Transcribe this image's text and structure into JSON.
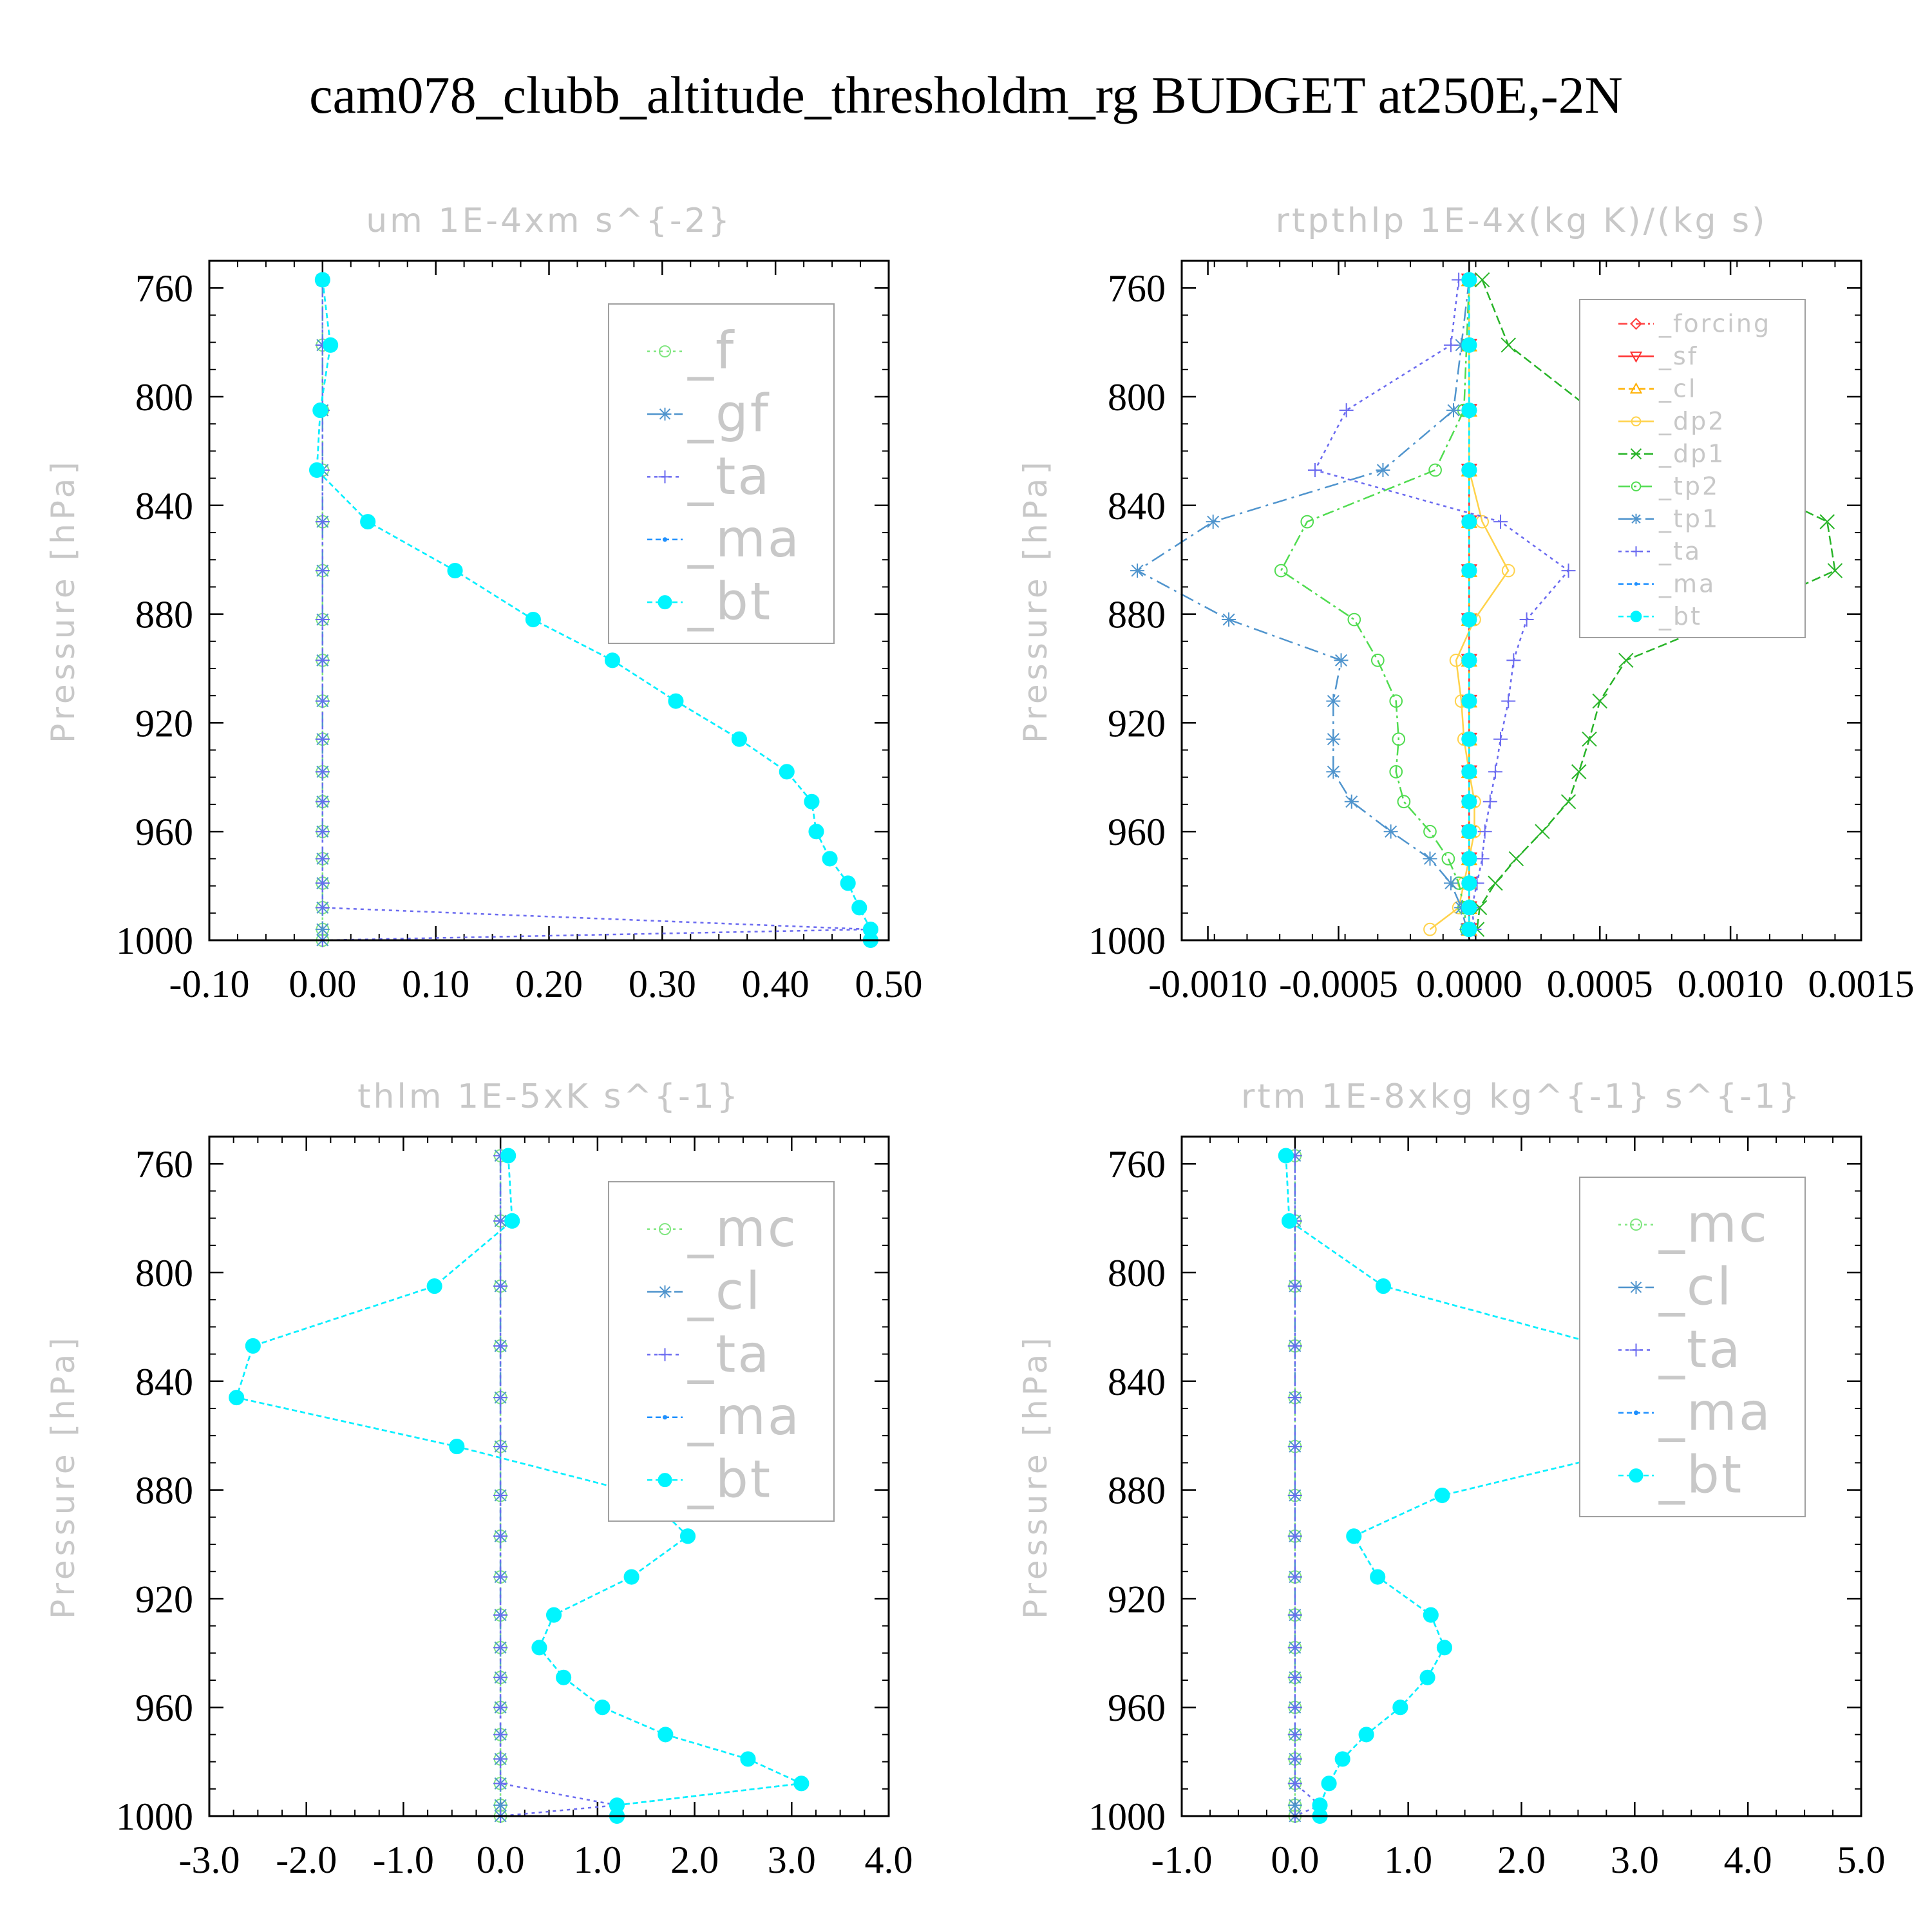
{
  "figure": {
    "title": "cam078_clubb_altitude_thresholdm_rg  BUDGET at250E,-2N"
  },
  "chart_data": [
    {
      "type": "line",
      "title": "um  1E-4xm s^{-2}",
      "ylabel": "Pressure [hPa]",
      "xlabel": "",
      "xlim": [
        -0.1,
        0.5
      ],
      "ylim": [
        1000,
        750
      ],
      "xticks": [
        "-0.10",
        "0.00",
        "0.10",
        "0.20",
        "0.30",
        "0.40",
        "0.50"
      ],
      "xtick_values": [
        -0.1,
        0.0,
        0.1,
        0.2,
        0.3,
        0.4,
        0.5
      ],
      "yticks": [
        "760",
        "800",
        "840",
        "880",
        "920",
        "960",
        "1000"
      ],
      "ytick_values": [
        760,
        800,
        840,
        880,
        920,
        960,
        1000
      ],
      "legend_position": "top-right",
      "y": [
        757,
        781,
        805,
        827,
        846,
        864,
        882,
        897,
        912,
        926,
        938,
        949,
        960,
        970,
        979,
        988,
        996,
        1000
      ],
      "series": [
        {
          "name": "_f",
          "color": "#7fe67f",
          "marker": "circle-open",
          "dash": "4,6",
          "values": [
            0,
            0,
            0,
            0,
            0,
            0,
            0,
            0,
            0,
            0,
            0,
            0,
            0,
            0,
            0,
            0,
            0,
            0
          ]
        },
        {
          "name": "_gf",
          "color": "#4f94cd",
          "marker": "asterisk",
          "dash": "22,8,4,8",
          "values": [
            0,
            0,
            0,
            0,
            0,
            0,
            0,
            0,
            0,
            0,
            0,
            0,
            0,
            0,
            0,
            0,
            0,
            0
          ]
        },
        {
          "name": "_ta",
          "color": "#6a6af0",
          "marker": "plus",
          "dash": "5,6",
          "values": [
            0,
            0,
            0,
            0,
            0,
            0,
            0,
            0,
            0,
            0,
            0,
            0,
            0,
            0,
            0,
            0,
            0.484,
            0
          ]
        },
        {
          "name": "_ma",
          "color": "#1e90ff",
          "marker": "dot",
          "dash": "8,5",
          "values": [
            0,
            0.007,
            -0.002,
            -0.005,
            0.04,
            0.117,
            0.186,
            0.256,
            0.312,
            0.368,
            0.41,
            0.432,
            0.436,
            0.448,
            0.464,
            0.474,
            0.484,
            0.484
          ]
        },
        {
          "name": "_bt",
          "color": "#00f5ff",
          "marker": "filled-circle",
          "dash": "8,5",
          "values": [
            0,
            0.007,
            -0.002,
            -0.005,
            0.04,
            0.117,
            0.186,
            0.256,
            0.312,
            0.368,
            0.41,
            0.432,
            0.436,
            0.448,
            0.464,
            0.474,
            0.484,
            0.484
          ]
        }
      ]
    },
    {
      "type": "line",
      "title": "rtpthlp  1E-4x(kg K)/(kg s)",
      "ylabel": "Pressure [hPa]",
      "xlabel": "",
      "xlim": [
        -0.0011,
        0.0015
      ],
      "ylim": [
        1000,
        750
      ],
      "xticks": [
        "-0.0010",
        "-0.0005",
        "0.0000",
        "0.0005",
        "0.0010",
        "0.0015"
      ],
      "xtick_values": [
        -0.001,
        -0.0005,
        0.0,
        0.0005,
        0.001,
        0.0015
      ],
      "yticks": [
        "760",
        "800",
        "840",
        "880",
        "920",
        "960",
        "1000"
      ],
      "ytick_values": [
        760,
        800,
        840,
        880,
        920,
        960,
        1000
      ],
      "legend_position": "top-right",
      "y": [
        757,
        781,
        805,
        827,
        846,
        864,
        882,
        897,
        912,
        926,
        938,
        949,
        960,
        970,
        979,
        988,
        996
      ],
      "series": [
        {
          "name": "_forcing",
          "color": "#ff4040",
          "marker": "diamond-open",
          "dash": "14,5,3,5",
          "values": [
            0,
            0,
            0,
            0,
            0,
            0,
            0,
            0,
            0,
            0,
            0,
            0,
            0,
            0,
            0,
            0,
            0
          ]
        },
        {
          "name": "_sf",
          "color": "#ff3030",
          "marker": "triangle-down-open",
          "dash": "",
          "values": [
            0,
            0,
            0,
            0,
            0,
            0,
            0,
            0,
            0,
            0,
            0,
            0,
            0,
            0,
            0,
            0,
            0
          ]
        },
        {
          "name": "_cl",
          "color": "#ffb000",
          "marker": "triangle-open",
          "dash": "10,6",
          "values": [
            0,
            0,
            0,
            0,
            0,
            0,
            0,
            0,
            0,
            0,
            0,
            0,
            0,
            0,
            0,
            0,
            0
          ]
        },
        {
          "name": "_dp2",
          "color": "#ffd24a",
          "marker": "circle-open",
          "dash": "",
          "values": [
            0,
            0,
            0,
            0,
            5e-05,
            0.00015,
            2e-05,
            -5e-05,
            -3e-05,
            -2e-05,
            0,
            2e-05,
            2e-05,
            0,
            -2e-05,
            -4e-05,
            -0.00015
          ]
        },
        {
          "name": "_dp1",
          "color": "#28b428",
          "marker": "cross",
          "dash": "14,6",
          "values": [
            5e-05,
            0.00015,
            0.00047,
            0.00096,
            0.00137,
            0.0014,
            0.00098,
            0.0006,
            0.0005,
            0.00046,
            0.00042,
            0.00038,
            0.00028,
            0.00018,
            0.0001,
            4e-05,
            3e-05
          ]
        },
        {
          "name": "_tp2",
          "color": "#50dc50",
          "marker": "circle-open",
          "dash": "18,6,4,6",
          "values": [
            0,
            -1e-05,
            -2e-05,
            -0.00013,
            -0.00062,
            -0.00072,
            -0.00044,
            -0.00035,
            -0.00028,
            -0.00027,
            -0.00028,
            -0.00025,
            -0.00015,
            -8e-05,
            -4e-05,
            -2e-05,
            -1e-05
          ]
        },
        {
          "name": "_tp1",
          "color": "#4f94cd",
          "marker": "asterisk",
          "dash": "22,8,4,8",
          "values": [
            0,
            -3e-05,
            -6e-05,
            -0.00033,
            -0.00098,
            -0.00127,
            -0.00092,
            -0.00049,
            -0.00052,
            -0.00052,
            -0.00052,
            -0.00045,
            -0.0003,
            -0.00015,
            -7e-05,
            -3e-05,
            -1e-05
          ]
        },
        {
          "name": "_ta",
          "color": "#6a6af0",
          "marker": "plus",
          "dash": "5,6",
          "values": [
            -4e-05,
            -7e-05,
            -0.00047,
            -0.00059,
            0.00012,
            0.00038,
            0.00022,
            0.00017,
            0.00015,
            0.00012,
            0.0001,
            8e-05,
            6e-05,
            5e-05,
            3e-05,
            1e-05,
            2e-05
          ]
        },
        {
          "name": "_ma",
          "color": "#1e90ff",
          "marker": "dot",
          "dash": "8,5",
          "values": [
            0,
            0,
            0,
            0,
            0,
            0,
            0,
            0,
            0,
            0,
            0,
            0,
            0,
            0,
            0,
            0,
            0
          ]
        },
        {
          "name": "_bt",
          "color": "#00f5ff",
          "marker": "filled-circle",
          "dash": "8,5",
          "values": [
            0,
            0,
            0,
            0,
            0,
            0,
            0,
            0,
            0,
            0,
            0,
            0,
            0,
            0,
            0,
            0,
            0
          ]
        }
      ]
    },
    {
      "type": "line",
      "title": "thlm  1E-5xK s^{-1}",
      "ylabel": "Pressure [hPa]",
      "xlabel": "",
      "xlim": [
        -3.0,
        4.0
      ],
      "ylim": [
        1000,
        750
      ],
      "xticks": [
        "-3.0",
        "-2.0",
        "-1.0",
        "0.0",
        "1.0",
        "2.0",
        "3.0",
        "4.0"
      ],
      "xtick_values": [
        -3.0,
        -2.0,
        -1.0,
        0.0,
        1.0,
        2.0,
        3.0,
        4.0
      ],
      "yticks": [
        "760",
        "800",
        "840",
        "880",
        "920",
        "960",
        "1000"
      ],
      "ytick_values": [
        760,
        800,
        840,
        880,
        920,
        960,
        1000
      ],
      "legend_position": "top-right",
      "y": [
        757,
        781,
        805,
        827,
        846,
        864,
        882,
        897,
        912,
        926,
        938,
        949,
        960,
        970,
        979,
        988,
        996,
        1000
      ],
      "series": [
        {
          "name": "_mc",
          "color": "#7fe67f",
          "marker": "circle-open",
          "dash": "4,6",
          "values": [
            0,
            0,
            0,
            0,
            0,
            0,
            0,
            0,
            0,
            0,
            0,
            0,
            0,
            0,
            0,
            0,
            0,
            0
          ]
        },
        {
          "name": "_cl",
          "color": "#4f94cd",
          "marker": "asterisk",
          "dash": "22,8,4,8",
          "values": [
            0,
            0,
            0,
            0,
            0,
            0,
            0,
            0,
            0,
            0,
            0,
            0,
            0,
            0,
            0,
            0,
            0,
            0
          ]
        },
        {
          "name": "_ta",
          "color": "#6a6af0",
          "marker": "plus",
          "dash": "5,6",
          "values": [
            0,
            0,
            0,
            0,
            0,
            0,
            0,
            0,
            0,
            0,
            0,
            0,
            0,
            0,
            0,
            0,
            1.2,
            0
          ]
        },
        {
          "name": "_ma",
          "color": "#1e90ff",
          "marker": "dot",
          "dash": "8,5",
          "values": [
            0.08,
            0.12,
            -0.68,
            -2.55,
            -2.72,
            -0.45,
            1.5,
            1.93,
            1.35,
            0.55,
            0.4,
            0.65,
            1.05,
            1.7,
            2.55,
            3.1,
            1.2,
            1.2
          ]
        },
        {
          "name": "_bt",
          "color": "#00f5ff",
          "marker": "filled-circle",
          "dash": "8,5",
          "values": [
            0.08,
            0.12,
            -0.68,
            -2.55,
            -2.72,
            -0.45,
            1.5,
            1.93,
            1.35,
            0.55,
            0.4,
            0.65,
            1.05,
            1.7,
            2.55,
            3.1,
            1.2,
            1.2
          ]
        }
      ]
    },
    {
      "type": "line",
      "title": "rtm  1E-8xkg kg^{-1} s^{-1}",
      "ylabel": "Pressure [hPa]",
      "xlabel": "",
      "xlim": [
        -1.0,
        5.0
      ],
      "ylim": [
        1000,
        750
      ],
      "xticks": [
        "-1.0",
        "0.0",
        "1.0",
        "2.0",
        "3.0",
        "4.0",
        "5.0"
      ],
      "xtick_values": [
        -1.0,
        0.0,
        1.0,
        2.0,
        3.0,
        4.0,
        5.0
      ],
      "yticks": [
        "760",
        "800",
        "840",
        "880",
        "920",
        "960",
        "1000"
      ],
      "ytick_values": [
        760,
        800,
        840,
        880,
        920,
        960,
        1000
      ],
      "legend_position": "top-right",
      "y": [
        757,
        781,
        805,
        827,
        846,
        864,
        882,
        897,
        912,
        926,
        938,
        949,
        960,
        970,
        979,
        988,
        996,
        1000
      ],
      "series": [
        {
          "name": "_mc",
          "color": "#7fe67f",
          "marker": "circle-open",
          "dash": "4,6",
          "values": [
            0,
            0,
            0,
            0,
            0,
            0,
            0,
            0,
            0,
            0,
            0,
            0,
            0,
            0,
            0,
            0,
            0,
            0
          ]
        },
        {
          "name": "_cl",
          "color": "#4f94cd",
          "marker": "asterisk",
          "dash": "22,8,4,8",
          "values": [
            0,
            0,
            0,
            0,
            0,
            0,
            0,
            0,
            0,
            0,
            0,
            0,
            0,
            0,
            0,
            0,
            0,
            0
          ]
        },
        {
          "name": "_ta",
          "color": "#6a6af0",
          "marker": "plus",
          "dash": "5,6",
          "values": [
            0,
            0,
            0,
            0,
            0,
            0,
            0,
            0,
            0,
            0,
            0,
            0,
            0,
            0,
            0,
            0,
            0.22,
            0
          ]
        },
        {
          "name": "_ma",
          "color": "#1e90ff",
          "marker": "dot",
          "dash": "8,5",
          "values": [
            -0.08,
            -0.05,
            0.78,
            2.73,
            4.37,
            3.1,
            1.3,
            0.52,
            0.73,
            1.2,
            1.32,
            1.17,
            0.93,
            0.63,
            0.42,
            0.3,
            0.22,
            0.22
          ]
        },
        {
          "name": "_bt",
          "color": "#00f5ff",
          "marker": "filled-circle",
          "dash": "8,5",
          "values": [
            -0.08,
            -0.05,
            0.78,
            2.73,
            4.37,
            3.1,
            1.3,
            0.52,
            0.73,
            1.2,
            1.32,
            1.17,
            0.93,
            0.63,
            0.42,
            0.3,
            0.22,
            0.22
          ]
        }
      ]
    }
  ]
}
